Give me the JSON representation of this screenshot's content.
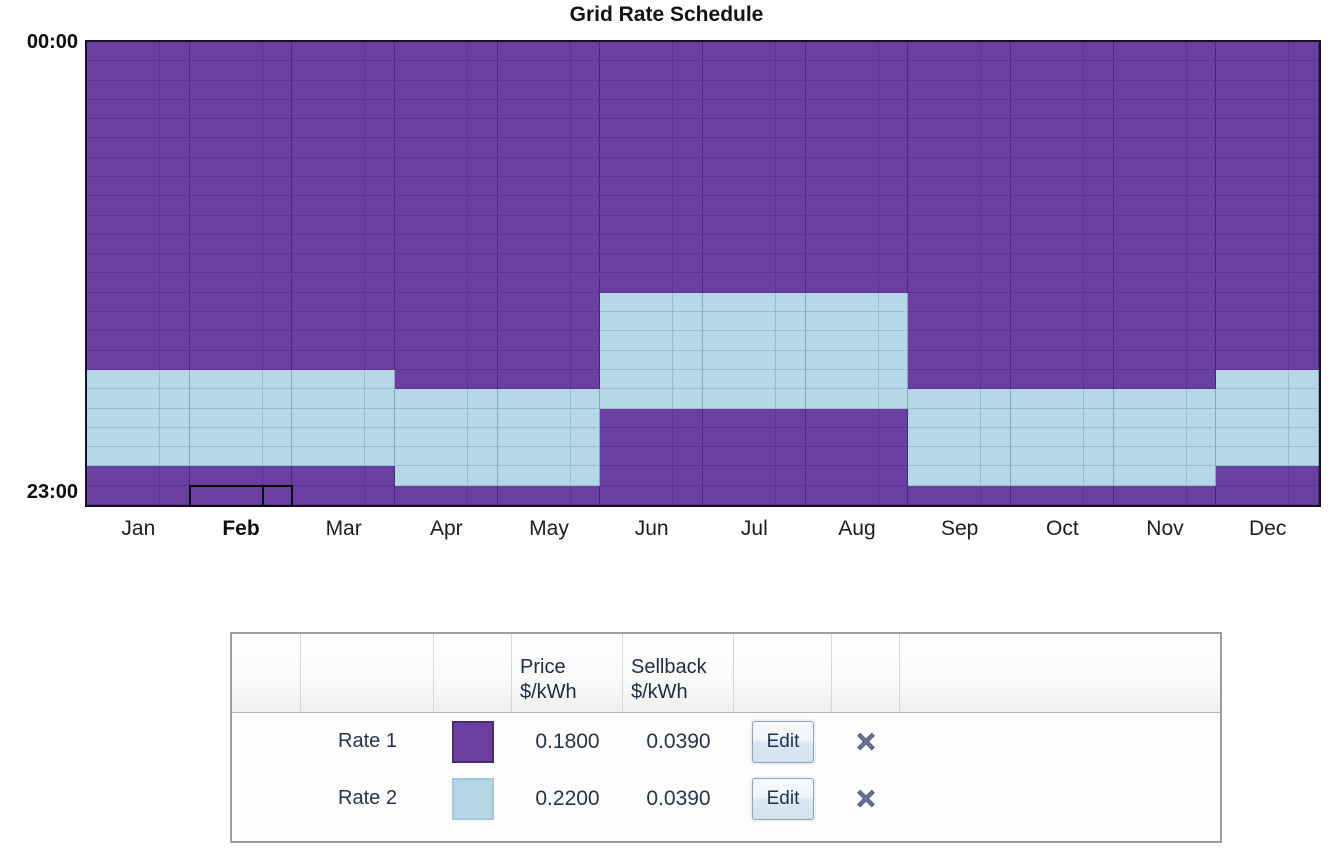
{
  "chart_data": {
    "type": "heatmap",
    "title": "Grid Rate Schedule",
    "x_categories": [
      "Jan",
      "Feb",
      "Mar",
      "Apr",
      "May",
      "Jun",
      "Jul",
      "Aug",
      "Sep",
      "Oct",
      "Nov",
      "Dec"
    ],
    "x_sub_columns_per_month": [
      "weekday",
      "weekend"
    ],
    "y_axis": {
      "direction": "top-to-bottom",
      "start_label": "00:00",
      "end_label": "23:00",
      "rows": 24
    },
    "grid": true,
    "legend_position": "table-below-chart",
    "rates": [
      {
        "name": "Rate 1",
        "color": "#6b3ea1",
        "price_usd_per_kwh": 0.18,
        "sellback_usd_per_kwh": 0.039
      },
      {
        "name": "Rate 2",
        "color": "#b5d8e6",
        "price_usd_per_kwh": 0.22,
        "sellback_usd_per_kwh": 0.039
      }
    ],
    "default_rate": "Rate 1",
    "rate2_hour_ranges_by_month": {
      "Jan": [
        17,
        22
      ],
      "Feb": [
        17,
        22
      ],
      "Mar": [
        17,
        22
      ],
      "Apr": [
        18,
        23
      ],
      "May": [
        18,
        23
      ],
      "Jun": [
        13,
        19
      ],
      "Jul": [
        13,
        19
      ],
      "Aug": [
        13,
        19
      ],
      "Sep": [
        18,
        23
      ],
      "Oct": [
        18,
        23
      ],
      "Nov": [
        18,
        23
      ],
      "Dec": [
        17,
        22
      ]
    },
    "selection": {
      "month": "Feb",
      "hour": 23,
      "month_label_bold": true
    }
  },
  "table": {
    "header": {
      "price_line1": "Price",
      "price_line2": "$/kWh",
      "sellback_line1": "Sellback",
      "sellback_line2": "$/kWh"
    },
    "rows": [
      {
        "name": "Rate 1",
        "swatch_color": "#6b3ea1",
        "swatch_class": "sw-r1",
        "price": "0.1800",
        "sellback": "0.0390",
        "edit_label": "Edit",
        "delete_icon": "✕"
      },
      {
        "name": "Rate 2",
        "swatch_color": "#b5d8e6",
        "swatch_class": "sw-r2",
        "price": "0.2200",
        "sellback": "0.0390",
        "edit_label": "Edit",
        "delete_icon": "✕"
      }
    ]
  },
  "colors": {
    "rate1": "#6b3ea1",
    "rate2": "#b5d8e6",
    "grid_line_on_rate1": "#5b3391",
    "grid_line_on_rate2": "#96becf",
    "month_line_on_rate1": "#4b2a7d",
    "month_line_on_rate2": "#81abc0",
    "plot_border": "#191226",
    "selection_outline": "#06060d"
  }
}
